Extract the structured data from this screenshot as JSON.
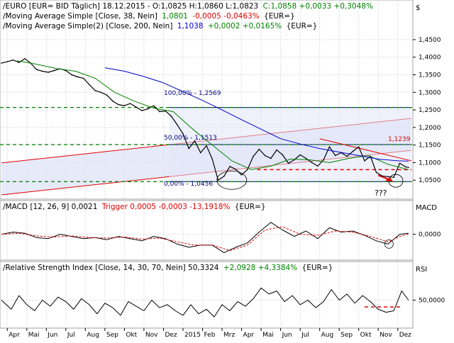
{
  "colors": {
    "price": "#000000",
    "ma38": "#008000",
    "ma200": "#0000cc",
    "channel": "#e00000",
    "channel_fill": "#dfe3f7",
    "fibo": "#000080",
    "fibo_fill": "#e2e6f8",
    "hline_dash": "#008000",
    "hline_solid": "#000080",
    "support": "#e00000",
    "macd": "#000000",
    "trigger": "#e00000",
    "rsi": "#000000",
    "grid": "#c8c8c8",
    "text_green": "#008000",
    "text_red": "#e00000",
    "text_blue": "#000080"
  },
  "main": {
    "header": {
      "symbol_text": "EURO [EUR= BID Täglich] 18.12.2015 - O:1,0825 H:1,0860 L:1,0823",
      "change_text": "C:1,0858 +0,0033 +0,3048%",
      "ma1_name": "Moving Average Simple [Close, 38, Nein]",
      "ma1_value": "1,0801",
      "ma1_change": "-0,0005 -0,0463%",
      "ma1_unit": "{EUR=}",
      "ma2_name": "Moving Average Simple(2) [Close, 200, Nein]",
      "ma2_value": "1,1038",
      "ma2_change": "+0,0002 +0,0165%",
      "ma2_unit": "{EUR=}"
    },
    "currency_label": "$",
    "fibo_labels": {
      "top": "100,00% - 1,2569",
      "mid": "50,00% - 1,1513",
      "bottom": "0,00% - 1,0456"
    },
    "price_box": "1,1239",
    "question_text": "???"
  },
  "macd": {
    "title": "MACD [12, 26, 9] 0,0021",
    "trigger_text": "Trigger 0,0005 -0,0003 -13,1918%",
    "unit": "{EUR=}",
    "axis_title": "MACD"
  },
  "rsi": {
    "title": "Relative Strength Index [Close, 14, 30, 70, Nein] 50,3324",
    "change_text": "+2,0928 +4,3384%",
    "unit": "{EUR=}",
    "axis_title": "RSI"
  },
  "chart_data": [
    {
      "type": "line",
      "name": "price",
      "ylim": [
        1.0,
        1.47
      ],
      "y_ticks": [
        "1,4500",
        "1,4000",
        "1,3500",
        "1,3000",
        "1,2500",
        "1,2000",
        "1,1500",
        "1,1000",
        "1,0500"
      ],
      "y_tick_values": [
        1.45,
        1.4,
        1.35,
        1.3,
        1.25,
        1.2,
        1.15,
        1.1,
        1.05
      ],
      "x_labels": [
        "Apr",
        "Mai",
        "Jun",
        "Jul",
        "Aug",
        "Sep",
        "Okt",
        "Nov",
        "Dez",
        "2015",
        "Feb",
        "Mrz",
        "Apr",
        "Mai",
        "Jun",
        "Jul",
        "Aug",
        "Sep",
        "Okt",
        "Nov",
        "Dez"
      ],
      "x_months": [
        0,
        1,
        2,
        3,
        4,
        5,
        6,
        7,
        8,
        9,
        10,
        11,
        12,
        13,
        14,
        15,
        16,
        17,
        18,
        19,
        20
      ],
      "xlim": [
        -0.3,
        20.7
      ],
      "series": [
        {
          "role": "price",
          "x": [
            -0.3,
            0.0,
            0.3,
            0.6,
            0.9,
            1.2,
            1.5,
            1.8,
            2.1,
            2.4,
            2.7,
            3.0,
            3.3,
            3.6,
            3.9,
            4.2,
            4.5,
            4.8,
            5.1,
            5.4,
            5.7,
            6.0,
            6.3,
            6.6,
            6.9,
            7.2,
            7.5,
            7.8,
            8.1,
            8.4,
            8.7,
            9.0,
            9.3,
            9.6,
            9.9,
            10.2,
            10.5,
            10.8,
            11.1,
            11.4,
            11.7,
            12.0,
            12.3,
            12.6,
            12.9,
            13.2,
            13.5,
            13.8,
            14.1,
            14.4,
            14.7,
            15.0,
            15.3,
            15.6,
            15.9,
            16.2,
            16.5,
            16.8,
            17.1,
            17.4,
            17.7,
            18.0,
            18.3,
            18.6,
            18.9,
            19.2,
            19.5,
            19.8,
            20.1,
            20.4,
            20.55
          ],
          "values": [
            1.383,
            1.387,
            1.392,
            1.385,
            1.396,
            1.383,
            1.365,
            1.36,
            1.357,
            1.362,
            1.367,
            1.362,
            1.35,
            1.344,
            1.34,
            1.322,
            1.305,
            1.3,
            1.292,
            1.275,
            1.265,
            1.262,
            1.268,
            1.258,
            1.248,
            1.253,
            1.262,
            1.245,
            1.247,
            1.232,
            1.208,
            1.182,
            1.14,
            1.162,
            1.128,
            1.148,
            1.11,
            1.05,
            1.061,
            1.089,
            1.081,
            1.065,
            1.08,
            1.118,
            1.138,
            1.12,
            1.112,
            1.136,
            1.122,
            1.098,
            1.108,
            1.122,
            1.112,
            1.1,
            1.09,
            1.108,
            1.145,
            1.12,
            1.128,
            1.118,
            1.132,
            1.145,
            1.105,
            1.118,
            1.072,
            1.062,
            1.06,
            1.058,
            1.098,
            1.088,
            1.086
          ]
        },
        {
          "role": "ma38",
          "x": [
            0.5,
            1.5,
            2.5,
            3.5,
            4.5,
            5.5,
            6.5,
            7.5,
            8.5,
            9.5,
            10.5,
            11.5,
            12.5,
            13.5,
            14.5,
            15.5,
            16.5,
            17.5,
            18.5,
            19.5,
            20.55
          ],
          "values": [
            1.39,
            1.38,
            1.368,
            1.36,
            1.34,
            1.3,
            1.275,
            1.255,
            1.245,
            1.195,
            1.15,
            1.105,
            1.08,
            1.09,
            1.11,
            1.108,
            1.1,
            1.112,
            1.12,
            1.095,
            1.08
          ]
        },
        {
          "role": "ma200",
          "x": [
            5.0,
            6.0,
            7.0,
            8.0,
            9.0,
            10.0,
            11.0,
            12.0,
            13.0,
            14.0,
            15.0,
            16.0,
            17.0,
            18.0,
            19.0,
            20.0,
            20.55
          ],
          "values": [
            1.37,
            1.36,
            1.345,
            1.327,
            1.302,
            1.277,
            1.25,
            1.222,
            1.195,
            1.168,
            1.153,
            1.14,
            1.13,
            1.12,
            1.11,
            1.105,
            1.104
          ]
        }
      ],
      "levels": {
        "fibo_100": 1.2569,
        "fibo_50": 1.1513,
        "fibo_0": 1.0456,
        "resistance_dash": 1.2569,
        "middle_dash": 1.1513,
        "support_dash": 1.0456,
        "red_support": 1.08
      }
    },
    {
      "type": "line",
      "name": "macd",
      "ylim": [
        -0.045,
        0.04
      ],
      "y_ticks": [
        "0,0000"
      ],
      "y_tick_values": [
        0.0
      ],
      "xlim": [
        -0.3,
        20.7
      ],
      "series": [
        {
          "role": "macd",
          "x": [
            -0.3,
            0.3,
            0.9,
            1.5,
            2.1,
            2.7,
            3.3,
            3.9,
            4.5,
            5.1,
            5.7,
            6.3,
            6.9,
            7.5,
            8.1,
            8.7,
            9.3,
            9.9,
            10.5,
            11.1,
            11.7,
            12.3,
            12.9,
            13.5,
            14.1,
            14.7,
            15.3,
            15.9,
            16.5,
            17.1,
            17.7,
            18.3,
            18.9,
            19.5,
            20.1,
            20.55
          ],
          "values": [
            0.0,
            0.004,
            0.002,
            -0.006,
            -0.008,
            0.0,
            -0.004,
            -0.008,
            -0.006,
            -0.01,
            -0.004,
            -0.008,
            -0.012,
            -0.004,
            -0.008,
            -0.018,
            -0.024,
            -0.02,
            -0.02,
            -0.034,
            -0.024,
            -0.016,
            0.004,
            0.022,
            0.008,
            -0.004,
            0.006,
            -0.008,
            0.012,
            0.004,
            0.006,
            -0.002,
            -0.012,
            -0.018,
            0.0,
            0.002
          ]
        },
        {
          "role": "trigger",
          "x": [
            -0.3,
            0.6,
            1.5,
            2.4,
            3.3,
            4.2,
            5.1,
            6.0,
            6.9,
            7.8,
            8.7,
            9.6,
            10.5,
            11.4,
            12.3,
            13.2,
            14.1,
            15.0,
            15.9,
            16.8,
            17.7,
            18.6,
            19.5,
            20.1,
            20.55
          ],
          "values": [
            0.0,
            0.002,
            -0.003,
            -0.005,
            -0.003,
            -0.006,
            -0.007,
            -0.005,
            -0.009,
            -0.007,
            -0.014,
            -0.02,
            -0.02,
            -0.03,
            -0.02,
            0.008,
            0.014,
            0.0,
            -0.002,
            0.006,
            0.004,
            -0.004,
            -0.014,
            -0.004,
            0.0005
          ]
        }
      ]
    },
    {
      "type": "line",
      "name": "rsi",
      "ylim": [
        15,
        85
      ],
      "y_ticks": [
        "50,0000"
      ],
      "y_tick_values": [
        50
      ],
      "xlim": [
        -0.3,
        20.7
      ],
      "series": [
        {
          "role": "rsi",
          "x": [
            -0.3,
            0.2,
            0.6,
            1.0,
            1.4,
            1.8,
            2.2,
            2.6,
            3.0,
            3.4,
            3.8,
            4.2,
            4.6,
            5.0,
            5.4,
            5.8,
            6.2,
            6.6,
            7.0,
            7.4,
            7.8,
            8.2,
            8.6,
            9.0,
            9.4,
            9.8,
            10.2,
            10.6,
            11.0,
            11.4,
            11.8,
            12.2,
            12.6,
            13.0,
            13.4,
            13.8,
            14.2,
            14.6,
            15.0,
            15.4,
            15.8,
            16.2,
            16.6,
            17.0,
            17.4,
            17.8,
            18.2,
            18.6,
            19.0,
            19.4,
            19.8,
            20.2,
            20.55
          ],
          "values": [
            50,
            38,
            56,
            44,
            36,
            50,
            42,
            54,
            48,
            38,
            52,
            44,
            32,
            46,
            40,
            30,
            48,
            42,
            36,
            50,
            40,
            44,
            36,
            30,
            44,
            32,
            38,
            28,
            44,
            36,
            48,
            42,
            52,
            66,
            58,
            62,
            48,
            56,
            44,
            50,
            40,
            48,
            64,
            50,
            58,
            46,
            56,
            48,
            38,
            34,
            36,
            62,
            50
          ]
        }
      ],
      "levels": {
        "red_dash": 41
      }
    }
  ]
}
